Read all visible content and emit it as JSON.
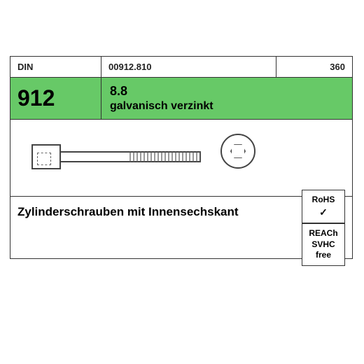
{
  "header": {
    "standard_label": "DIN",
    "article_code": "00912.810",
    "ref_number": "360"
  },
  "spec": {
    "din_number": "912",
    "strength_grade": "8.8",
    "coating": "galvanisch verzinkt"
  },
  "product": {
    "title": "Zylinderschrauben mit Innensechskant"
  },
  "badges": {
    "rohs_label": "RoHS",
    "rohs_check": "✓",
    "reach_line1": "REACh",
    "reach_line2": "SVHC",
    "reach_line3": "free"
  },
  "style": {
    "green": "#67c967",
    "border": "#333333",
    "text": "#000000",
    "background": "#ffffff"
  }
}
